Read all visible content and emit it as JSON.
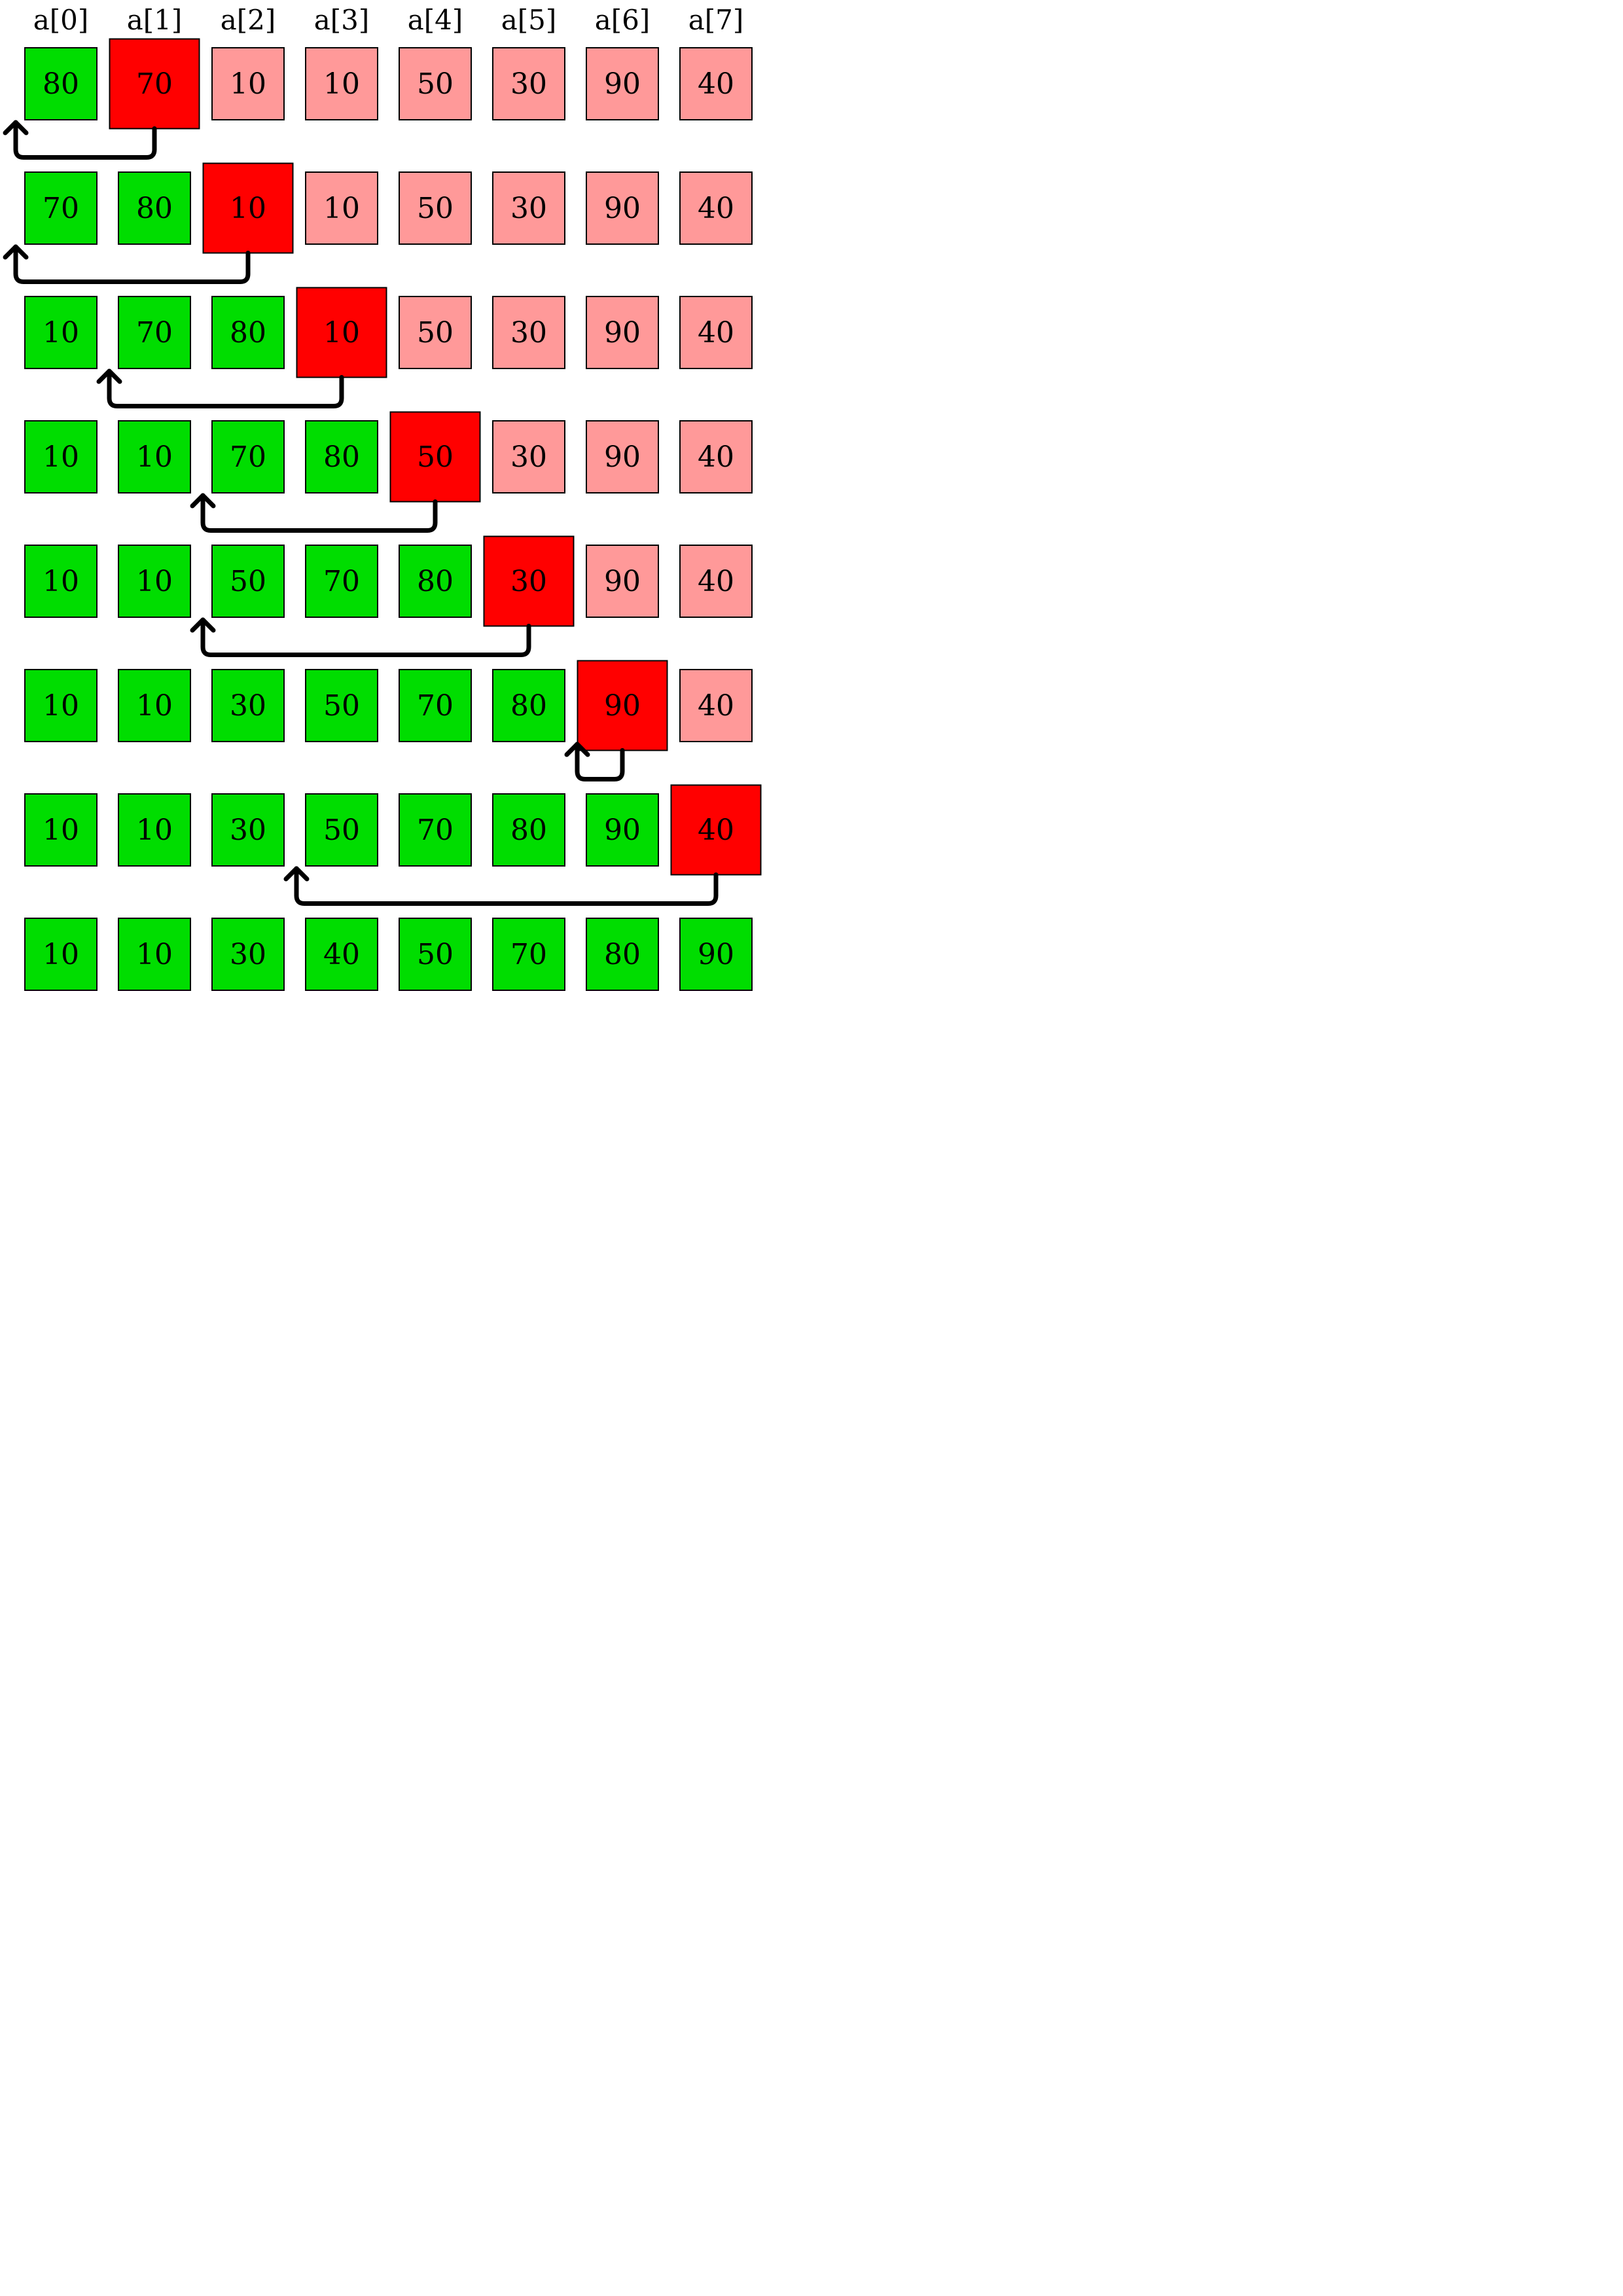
{
  "headers": [
    "a[0]",
    "a[1]",
    "a[2]",
    "a[3]",
    "a[4]",
    "a[5]",
    "a[6]",
    "a[7]"
  ],
  "colors": {
    "sorted": "#00dd00",
    "unsorted": "#ff9999",
    "current": "#ff0000",
    "border": "#000000",
    "arrow": "#000000"
  },
  "steps": [
    {
      "values": [
        "80",
        "70",
        "10",
        "10",
        "50",
        "30",
        "90",
        "40"
      ],
      "sorted_count": 1,
      "current_index": 1,
      "insert_index": 0
    },
    {
      "values": [
        "70",
        "80",
        "10",
        "10",
        "50",
        "30",
        "90",
        "40"
      ],
      "sorted_count": 2,
      "current_index": 2,
      "insert_index": 0
    },
    {
      "values": [
        "10",
        "70",
        "80",
        "10",
        "50",
        "30",
        "90",
        "40"
      ],
      "sorted_count": 3,
      "current_index": 3,
      "insert_index": 1
    },
    {
      "values": [
        "10",
        "10",
        "70",
        "80",
        "50",
        "30",
        "90",
        "40"
      ],
      "sorted_count": 4,
      "current_index": 4,
      "insert_index": 2
    },
    {
      "values": [
        "10",
        "10",
        "50",
        "70",
        "80",
        "30",
        "90",
        "40"
      ],
      "sorted_count": 5,
      "current_index": 5,
      "insert_index": 2
    },
    {
      "values": [
        "10",
        "10",
        "30",
        "50",
        "70",
        "80",
        "90",
        "40"
      ],
      "sorted_count": 6,
      "current_index": 6,
      "insert_index": 6
    },
    {
      "values": [
        "10",
        "10",
        "30",
        "50",
        "70",
        "80",
        "90",
        "40"
      ],
      "sorted_count": 7,
      "current_index": 7,
      "insert_index": 3
    },
    {
      "values": [
        "10",
        "10",
        "30",
        "40",
        "50",
        "70",
        "80",
        "90"
      ],
      "sorted_count": 8,
      "current_index": null,
      "insert_index": null
    }
  ]
}
